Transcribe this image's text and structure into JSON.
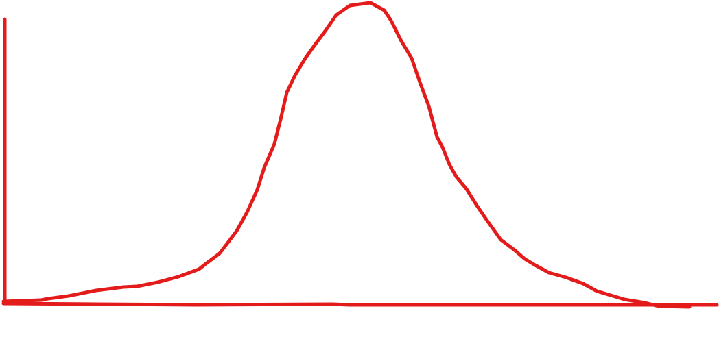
{
  "diagram": {
    "type": "hand-drawn bell curve sketch",
    "stroke_color": "#e31b1b",
    "background_color": "#ffffff"
  }
}
